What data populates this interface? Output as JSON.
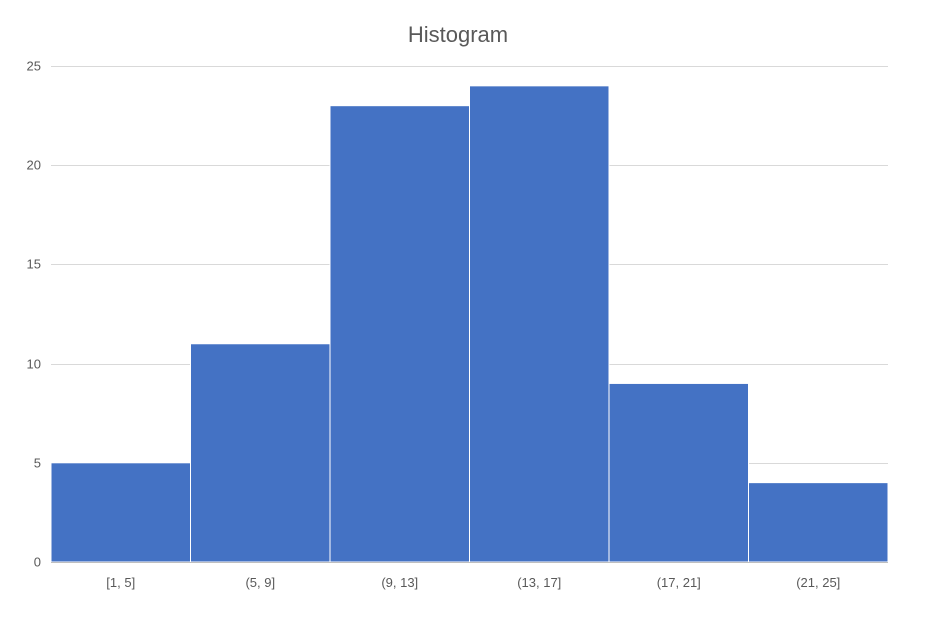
{
  "chart_data": {
    "type": "bar",
    "title": "Histogram",
    "xlabel": "",
    "ylabel": "",
    "categories": [
      "[1, 5]",
      "(5, 9]",
      "(9, 13]",
      "(13, 17]",
      "(17, 21]",
      "(21, 25]"
    ],
    "values": [
      5,
      11,
      23,
      24,
      9,
      4
    ],
    "ylim": [
      0,
      25
    ],
    "yticks": [
      0,
      5,
      10,
      15,
      20,
      25
    ],
    "grid": true,
    "legend": "none",
    "bar_color": "#4472C4"
  }
}
